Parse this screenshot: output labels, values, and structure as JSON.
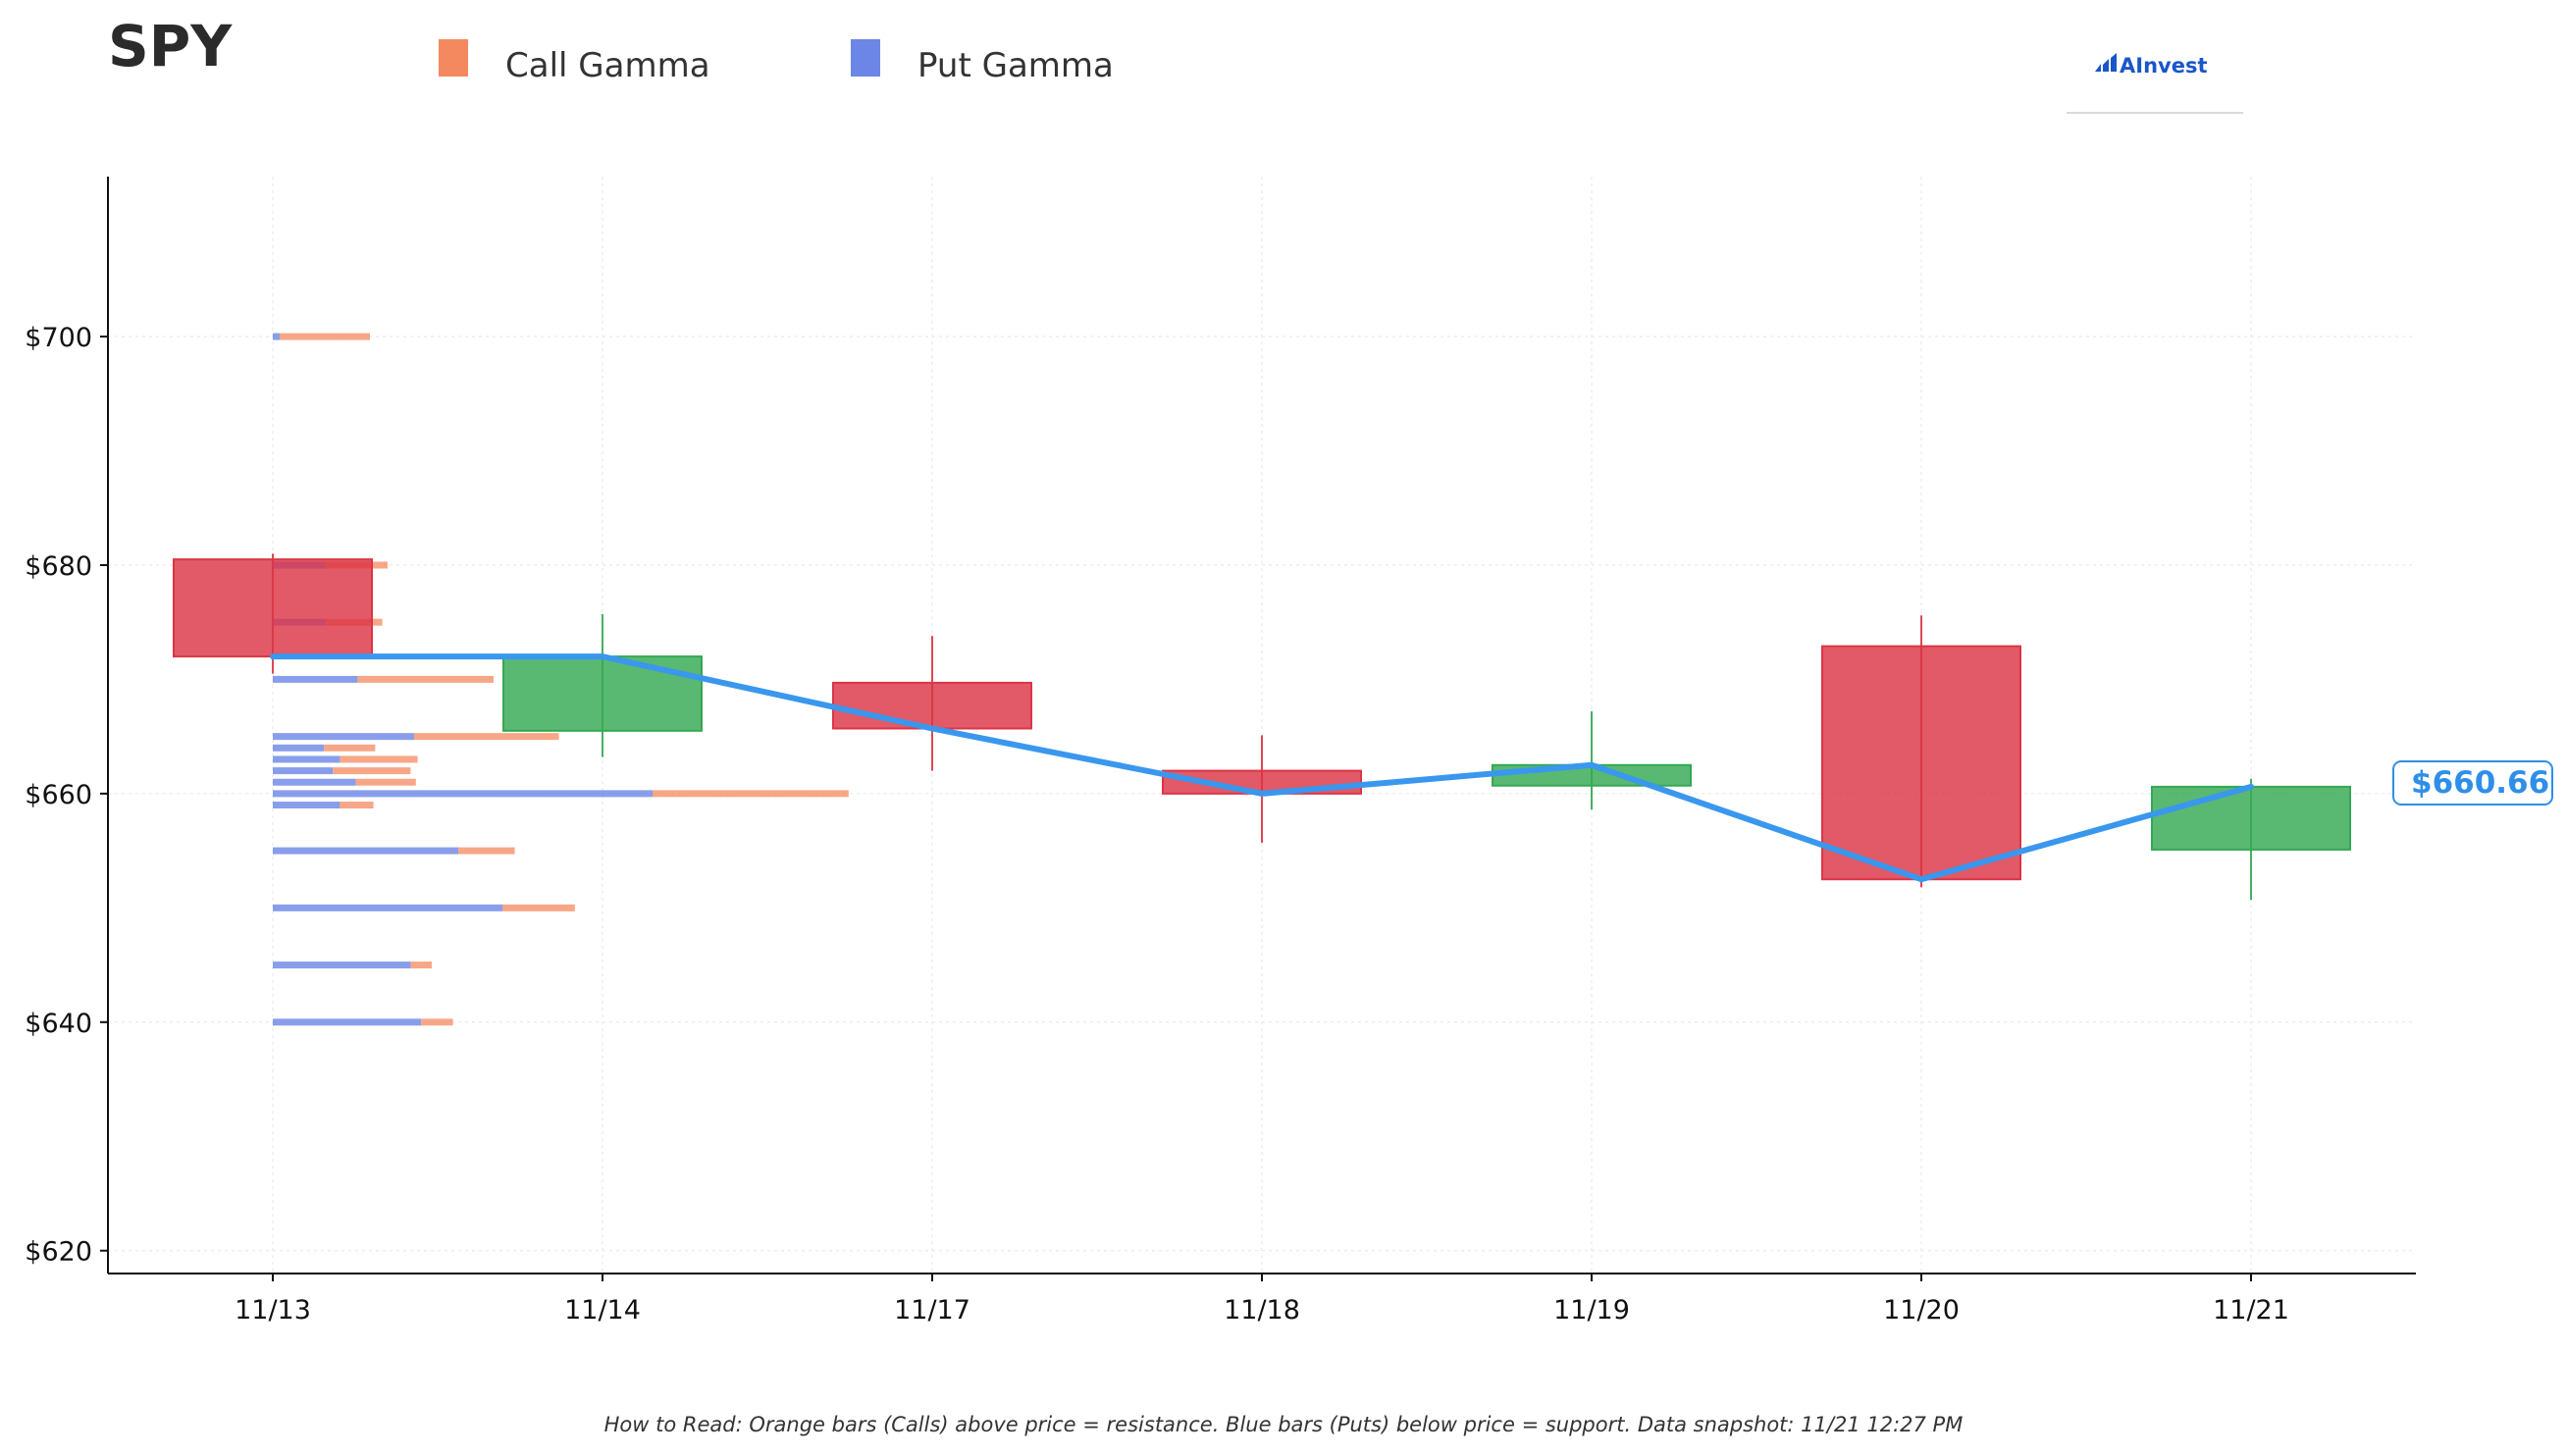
{
  "title": "SPY",
  "logo_text": "AInvest",
  "footer": "How to Read: Orange bars (Calls) above price = resistance. Blue bars (Puts) below price = support. Data snapshot: 11/21 12:27 PM",
  "current_price_label": "$660.66",
  "colors": {
    "call": "#f4895f",
    "put": "#6b86e6",
    "up": "#34a853",
    "down": "#dc3545",
    "line": "#3a97ee",
    "logo": "#1a56c9"
  },
  "chart_data": {
    "type": "candlestick",
    "categories": [
      "11/13",
      "11/14",
      "11/17",
      "11/18",
      "11/19",
      "11/20",
      "11/21"
    ],
    "ohlc": [
      {
        "date": "11/13",
        "open": 680.5,
        "high": 681.0,
        "low": 670.5,
        "close": 672.0
      },
      {
        "date": "11/14",
        "open": 665.5,
        "high": 675.7,
        "low": 663.2,
        "close": 672.0
      },
      {
        "date": "11/17",
        "open": 669.7,
        "high": 673.8,
        "low": 662.0,
        "close": 665.7
      },
      {
        "date": "11/18",
        "open": 662.0,
        "high": 665.1,
        "low": 655.7,
        "close": 660.0
      },
      {
        "date": "11/19",
        "open": 660.7,
        "high": 667.2,
        "low": 658.6,
        "close": 662.5
      },
      {
        "date": "11/20",
        "open": 672.9,
        "high": 675.6,
        "low": 651.8,
        "close": 652.5
      },
      {
        "date": "11/21",
        "open": 655.1,
        "high": 661.3,
        "low": 650.7,
        "close": 660.6
      }
    ],
    "close_line": [
      672.0,
      672.0,
      665.7,
      660.0,
      662.5,
      652.5,
      660.6
    ],
    "last_price": 660.66,
    "gamma": [
      {
        "strike": 700,
        "put": 0.04,
        "call": 0.55
      },
      {
        "strike": 680,
        "put": 0.3,
        "call": 0.65
      },
      {
        "strike": 675,
        "put": 0.3,
        "call": 0.62
      },
      {
        "strike": 670,
        "put": 0.48,
        "call": 1.25
      },
      {
        "strike": 665,
        "put": 0.8,
        "call": 1.62
      },
      {
        "strike": 664,
        "put": 0.29,
        "call": 0.58
      },
      {
        "strike": 663,
        "put": 0.38,
        "call": 0.82
      },
      {
        "strike": 662,
        "put": 0.34,
        "call": 0.78
      },
      {
        "strike": 661,
        "put": 0.47,
        "call": 0.81
      },
      {
        "strike": 660,
        "put": 2.15,
        "call": 3.26
      },
      {
        "strike": 659,
        "put": 0.38,
        "call": 0.57
      },
      {
        "strike": 655,
        "put": 1.05,
        "call": 1.37
      },
      {
        "strike": 650,
        "put": 1.3,
        "call": 1.71
      },
      {
        "strike": 645,
        "put": 0.78,
        "call": 0.9
      },
      {
        "strike": 640,
        "put": 0.84,
        "call": 1.02
      }
    ],
    "legend": [
      "Call Gamma",
      "Put Gamma"
    ],
    "legend_position": "top",
    "yticks": [
      620,
      640,
      660,
      680,
      700
    ],
    "ytick_labels": [
      "$620",
      "$640",
      "$660",
      "$680",
      "$700"
    ],
    "ylim": [
      618,
      714
    ],
    "grid": true,
    "xlabel": "",
    "ylabel": ""
  }
}
